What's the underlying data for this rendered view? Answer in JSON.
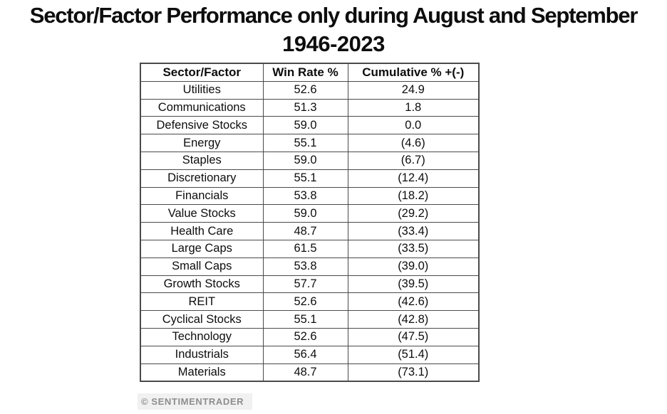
{
  "title": {
    "line1": "Sector/Factor Performance only during August and September",
    "line2": "1946-2023"
  },
  "table": {
    "headers": [
      "Sector/Factor",
      "Win Rate %",
      "Cumulative % +(-)"
    ],
    "rows": [
      [
        "Utilities",
        "52.6",
        "24.9"
      ],
      [
        "Communications",
        "51.3",
        "1.8"
      ],
      [
        "Defensive Stocks",
        "59.0",
        "0.0"
      ],
      [
        "Energy",
        "55.1",
        "(4.6)"
      ],
      [
        "Staples",
        "59.0",
        "(6.7)"
      ],
      [
        "Discretionary",
        "55.1",
        "(12.4)"
      ],
      [
        "Financials",
        "53.8",
        "(18.2)"
      ],
      [
        "Value Stocks",
        "59.0",
        "(29.2)"
      ],
      [
        "Health Care",
        "48.7",
        "(33.4)"
      ],
      [
        "Large Caps",
        "61.5",
        "(33.5)"
      ],
      [
        "Small Caps",
        "53.8",
        "(39.0)"
      ],
      [
        "Growth Stocks",
        "57.7",
        "(39.5)"
      ],
      [
        "REIT",
        "52.6",
        "(42.6)"
      ],
      [
        "Cyclical Stocks",
        "55.1",
        "(42.8)"
      ],
      [
        "Technology",
        "52.6",
        "(47.5)"
      ],
      [
        "Industrials",
        "56.4",
        "(51.4)"
      ],
      [
        "Materials",
        "48.7",
        "(73.1)"
      ]
    ]
  },
  "footer": {
    "credit": "© SENTIMENTRADER"
  },
  "colors": {
    "text": "#0d0d0d",
    "negative_value": "#ff0000",
    "table_border": "#4a4a4a",
    "credit_text": "#8e8e8e",
    "credit_background": "#f1f1f1"
  },
  "chart_data": {
    "type": "table",
    "title": "Sector/Factor Performance only during August and September 1946-2023",
    "columns": [
      "Sector/Factor",
      "Win Rate %",
      "Cumulative % +(-)"
    ],
    "rows": [
      [
        "Utilities",
        52.6,
        24.9
      ],
      [
        "Communications",
        51.3,
        1.8
      ],
      [
        "Defensive Stocks",
        59.0,
        0.0
      ],
      [
        "Energy",
        55.1,
        -4.6
      ],
      [
        "Staples",
        59.0,
        -6.7
      ],
      [
        "Discretionary",
        55.1,
        -12.4
      ],
      [
        "Financials",
        53.8,
        -18.2
      ],
      [
        "Value Stocks",
        59.0,
        -29.2
      ],
      [
        "Health Care",
        48.7,
        -33.4
      ],
      [
        "Large Caps",
        61.5,
        -33.5
      ],
      [
        "Small Caps",
        53.8,
        -39.0
      ],
      [
        "Growth Stocks",
        57.7,
        -39.5
      ],
      [
        "REIT",
        52.6,
        -42.6
      ],
      [
        "Cyclical Stocks",
        55.1,
        -42.8
      ],
      [
        "Technology",
        52.6,
        -47.5
      ],
      [
        "Industrials",
        56.4,
        -51.4
      ],
      [
        "Materials",
        48.7,
        -73.1
      ]
    ],
    "notes": "Negative cumulative values rendered in red within parentheses; positive values in black"
  }
}
